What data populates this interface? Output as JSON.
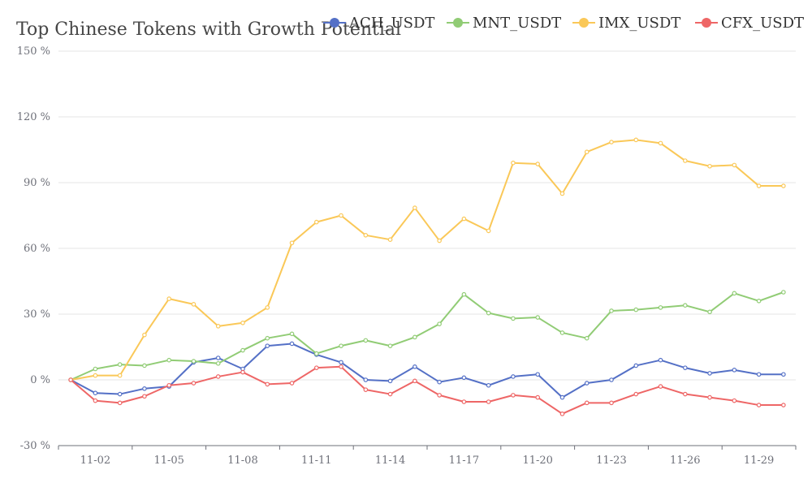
{
  "chart_data": {
    "type": "line",
    "title": "Top Chinese Tokens with Growth Potential",
    "xlabel": "",
    "ylabel": "",
    "ylim": [
      -30,
      150
    ],
    "y_ticks": [
      -30,
      0,
      30,
      60,
      90,
      120,
      150
    ],
    "y_tick_suffix": " %",
    "grid": true,
    "legend_position": "top-right",
    "categories": [
      "11-01",
      "11-02",
      "11-03",
      "11-04",
      "11-05",
      "11-06",
      "11-07",
      "11-08",
      "11-09",
      "11-10",
      "11-11",
      "11-12",
      "11-13",
      "11-14",
      "11-15",
      "11-16",
      "11-17",
      "11-18",
      "11-19",
      "11-20",
      "11-21",
      "11-22",
      "11-23",
      "11-24",
      "11-25",
      "11-26",
      "11-27",
      "11-28",
      "11-29",
      "11-30"
    ],
    "x_tick_labels": [
      {
        "index": 1,
        "label": "11-02"
      },
      {
        "index": 4,
        "label": "11-05"
      },
      {
        "index": 7,
        "label": "11-08"
      },
      {
        "index": 10,
        "label": "11-11"
      },
      {
        "index": 13,
        "label": "11-14"
      },
      {
        "index": 16,
        "label": "11-17"
      },
      {
        "index": 19,
        "label": "11-20"
      },
      {
        "index": 22,
        "label": "11-23"
      },
      {
        "index": 25,
        "label": "11-26"
      },
      {
        "index": 28,
        "label": "11-29"
      }
    ],
    "series": [
      {
        "name": "ACH_USDT",
        "color": "#5470c6",
        "values": [
          0,
          -6,
          -6.5,
          -4,
          -3,
          8,
          10,
          5,
          15.5,
          16.5,
          11.5,
          8,
          0,
          -0.5,
          6,
          -1,
          1,
          -2.5,
          1.5,
          2.5,
          -8,
          -1.5,
          0,
          6.5,
          9,
          5.5,
          3,
          4.5,
          2.5,
          2.5
        ]
      },
      {
        "name": "MNT_USDT",
        "color": "#91cc75",
        "values": [
          0,
          5,
          7,
          6.5,
          9,
          8.5,
          7.5,
          13.5,
          19,
          21,
          12,
          15.5,
          18,
          15.5,
          19.5,
          25.5,
          39,
          30.5,
          28,
          28.5,
          21.5,
          19,
          31.5,
          32,
          33,
          34,
          31,
          39.5,
          36,
          40
        ]
      },
      {
        "name": "IMX_USDT",
        "color": "#fac858",
        "values": [
          0,
          2,
          2,
          20.5,
          37,
          34.5,
          24.5,
          26,
          33,
          62.5,
          72,
          75,
          66,
          64,
          78.5,
          63.5,
          73.5,
          68,
          99,
          98.5,
          85,
          104,
          108.5,
          109.5,
          108,
          100,
          97.5,
          98,
          88.5,
          88.5
        ]
      },
      {
        "name": "CFX_USDT",
        "color": "#ee6666",
        "values": [
          0,
          -9.5,
          -10.5,
          -7.5,
          -2.5,
          -1.5,
          1.5,
          3.5,
          -2,
          -1.5,
          5.5,
          6,
          -4.5,
          -6.5,
          -0.5,
          -7,
          -10,
          -10,
          -7,
          -8,
          -15.5,
          -10.5,
          -10.5,
          -6.5,
          -3,
          -6.5,
          -8,
          -9.5,
          -11.5,
          -11.5
        ]
      }
    ]
  }
}
